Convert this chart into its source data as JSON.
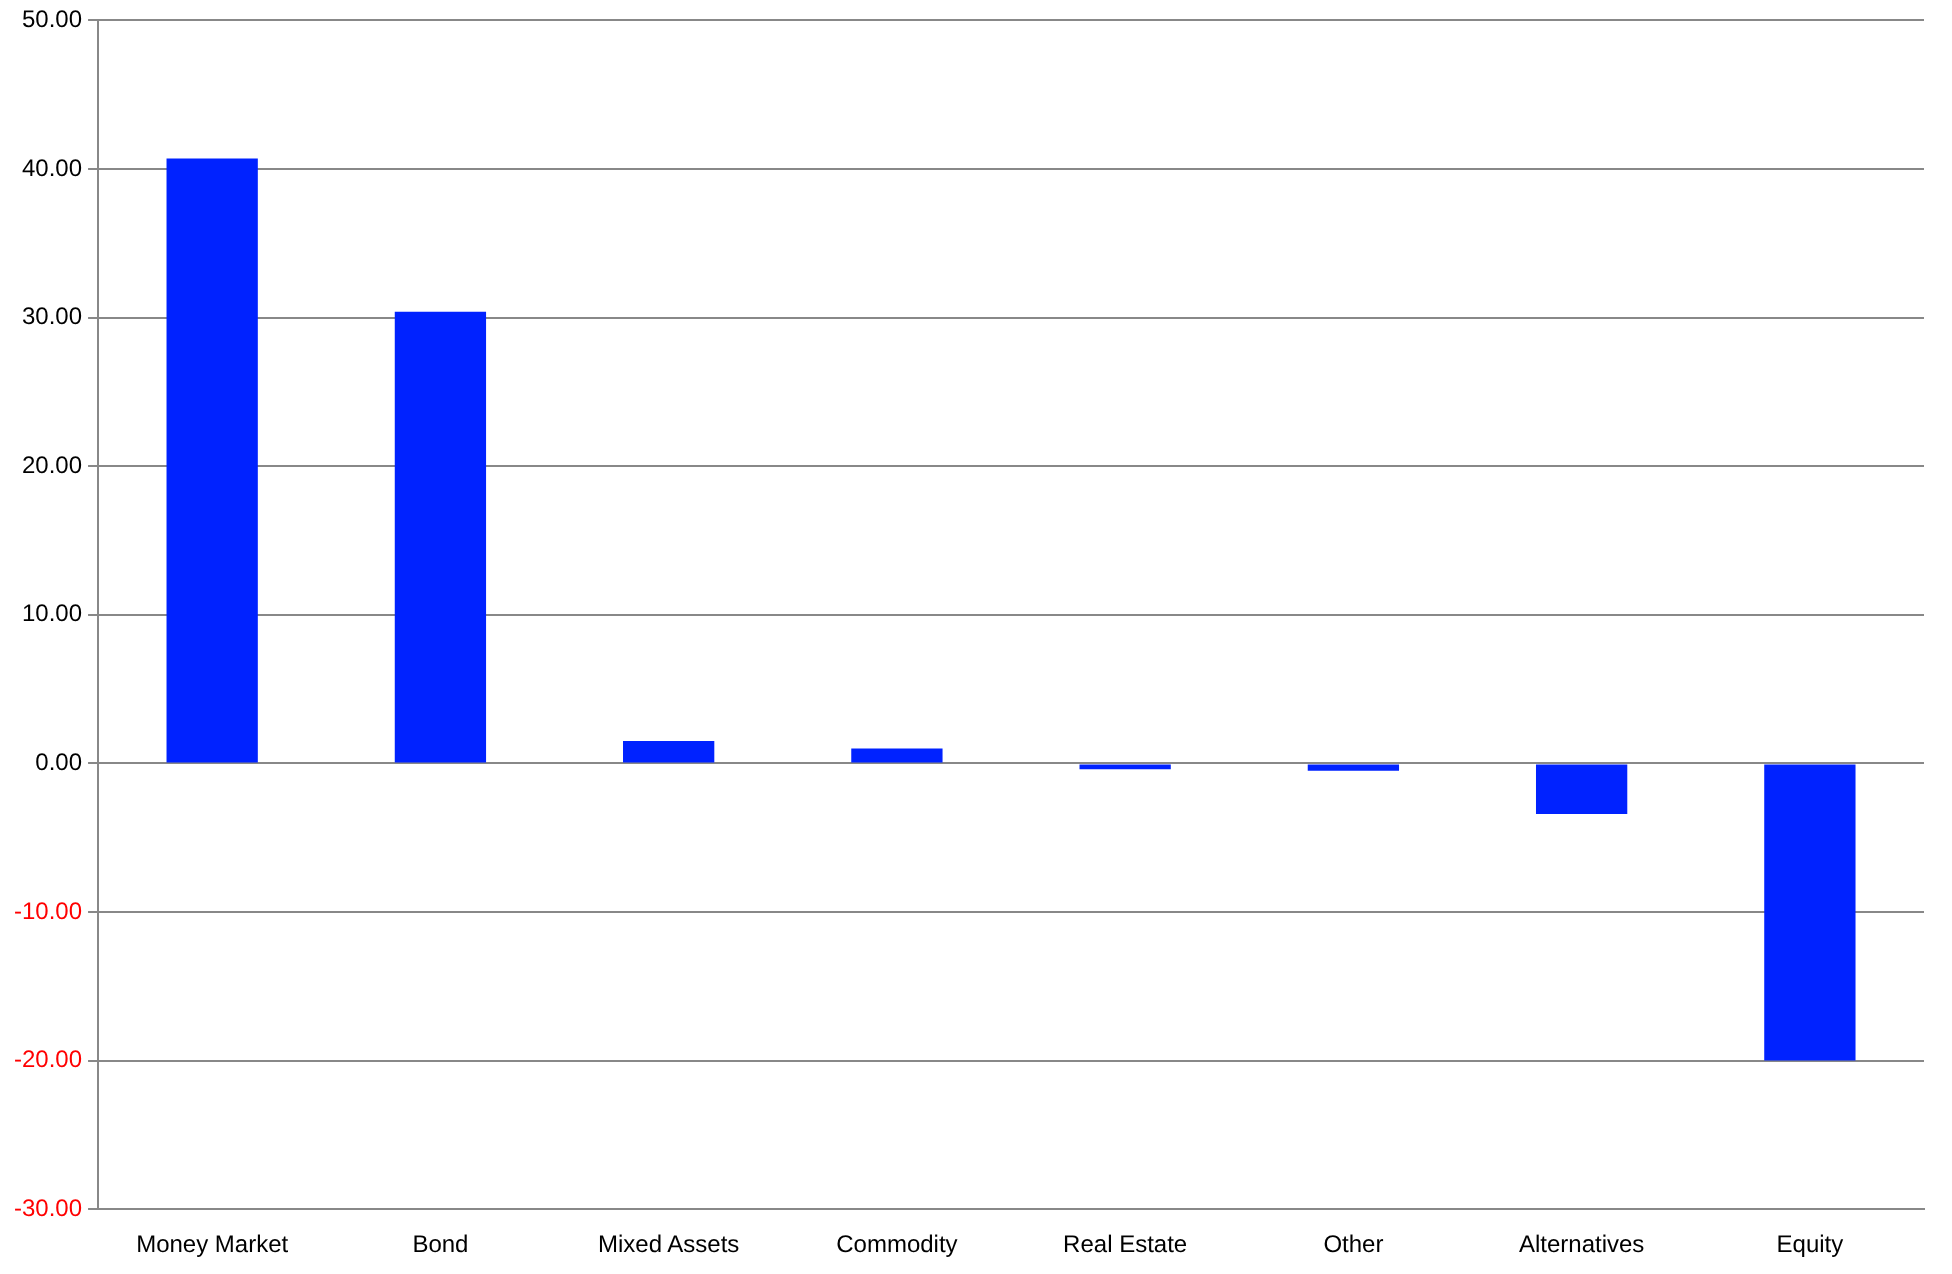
{
  "chart_data": {
    "type": "bar",
    "categories": [
      "Money Market",
      "Bond",
      "Mixed Assets",
      "Commodity",
      "Real Estate",
      "Other",
      "Alternatives",
      "Equity"
    ],
    "values": [
      40.7,
      30.4,
      1.5,
      1.0,
      -0.4,
      -0.5,
      -3.4,
      -20.0
    ],
    "color": "#0022ff",
    "ylim": [
      -30,
      50
    ],
    "yticks": [
      {
        "value": -30,
        "label": "-30.00"
      },
      {
        "value": -20,
        "label": "-20.00"
      },
      {
        "value": -10,
        "label": "-10.00"
      },
      {
        "value": 0,
        "label": "0.00"
      },
      {
        "value": 10,
        "label": "10.00"
      },
      {
        "value": 20,
        "label": "20.00"
      },
      {
        "value": 30,
        "label": "30.00"
      },
      {
        "value": 40,
        "label": "40.00"
      },
      {
        "value": 50,
        "label": "50.00"
      }
    ],
    "grid": "y"
  }
}
